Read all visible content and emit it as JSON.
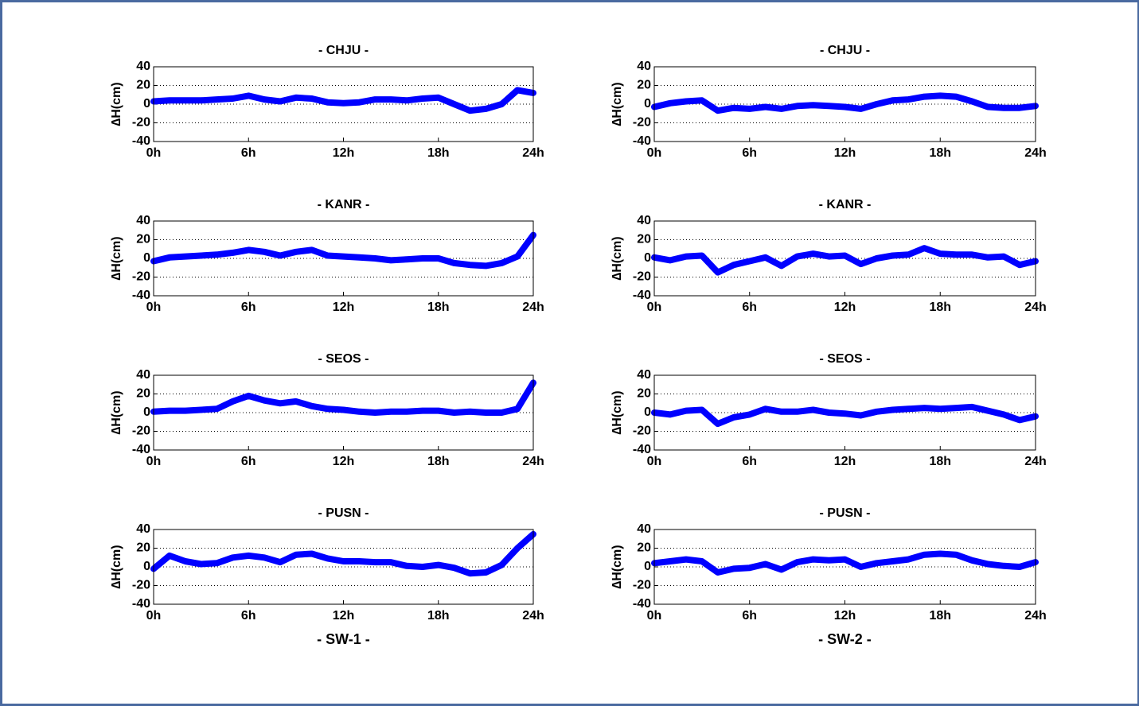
{
  "chart_data": [
    {
      "type": "line",
      "title": "- CHJU -",
      "ylabel": "∆H(cm)",
      "x": [
        0,
        1,
        2,
        3,
        4,
        5,
        6,
        7,
        8,
        9,
        10,
        11,
        12,
        13,
        14,
        15,
        16,
        17,
        18,
        19,
        20,
        21,
        22,
        23,
        24
      ],
      "xlim": [
        0,
        24
      ],
      "xticks": [
        {
          "value": 0,
          "label": "0h"
        },
        {
          "value": 6,
          "label": "6h"
        },
        {
          "value": 12,
          "label": "12h"
        },
        {
          "value": 18,
          "label": "18h"
        },
        {
          "value": 24,
          "label": "24h"
        }
      ],
      "ylim": [
        -40,
        40
      ],
      "yticks": [
        -40,
        -20,
        0,
        20,
        40
      ],
      "grid": true,
      "color": "#0000ff",
      "values": [
        3,
        4,
        4,
        4,
        5,
        6,
        9,
        5,
        3,
        7,
        6,
        2,
        1,
        2,
        5,
        5,
        4,
        6,
        7,
        0,
        -7,
        -5,
        0,
        15,
        12
      ]
    },
    {
      "type": "line",
      "title": "- CHJU -",
      "ylabel": "∆H(cm)",
      "x": [
        0,
        1,
        2,
        3,
        4,
        5,
        6,
        7,
        8,
        9,
        10,
        11,
        12,
        13,
        14,
        15,
        16,
        17,
        18,
        19,
        20,
        21,
        22,
        23,
        24
      ],
      "xlim": [
        0,
        24
      ],
      "xticks": [
        {
          "value": 0,
          "label": "0h"
        },
        {
          "value": 6,
          "label": "6h"
        },
        {
          "value": 12,
          "label": "12h"
        },
        {
          "value": 18,
          "label": "18h"
        },
        {
          "value": 24,
          "label": "24h"
        }
      ],
      "ylim": [
        -40,
        40
      ],
      "yticks": [
        -40,
        -20,
        0,
        20,
        40
      ],
      "grid": true,
      "color": "#0000ff",
      "values": [
        -3,
        1,
        3,
        4,
        -7,
        -4,
        -5,
        -3,
        -5,
        -2,
        -1,
        -2,
        -3,
        -5,
        0,
        4,
        5,
        8,
        9,
        8,
        3,
        -3,
        -4,
        -4,
        -2
      ]
    },
    {
      "type": "line",
      "title": "- KANR -",
      "ylabel": "∆H(cm)",
      "x": [
        0,
        1,
        2,
        3,
        4,
        5,
        6,
        7,
        8,
        9,
        10,
        11,
        12,
        13,
        14,
        15,
        16,
        17,
        18,
        19,
        20,
        21,
        22,
        23,
        24
      ],
      "xlim": [
        0,
        24
      ],
      "xticks": [
        {
          "value": 0,
          "label": "0h"
        },
        {
          "value": 6,
          "label": "6h"
        },
        {
          "value": 12,
          "label": "12h"
        },
        {
          "value": 18,
          "label": "18h"
        },
        {
          "value": 24,
          "label": "24h"
        }
      ],
      "ylim": [
        -40,
        40
      ],
      "yticks": [
        -40,
        -20,
        0,
        20,
        40
      ],
      "grid": true,
      "color": "#0000ff",
      "values": [
        -3,
        1,
        2,
        3,
        4,
        6,
        9,
        7,
        3,
        7,
        9,
        3,
        2,
        1,
        0,
        -2,
        -1,
        0,
        0,
        -5,
        -7,
        -8,
        -5,
        2,
        25
      ]
    },
    {
      "type": "line",
      "title": "- KANR -",
      "ylabel": "∆H(cm)",
      "x": [
        0,
        1,
        2,
        3,
        4,
        5,
        6,
        7,
        8,
        9,
        10,
        11,
        12,
        13,
        14,
        15,
        16,
        17,
        18,
        19,
        20,
        21,
        22,
        23,
        24
      ],
      "xlim": [
        0,
        24
      ],
      "xticks": [
        {
          "value": 0,
          "label": "0h"
        },
        {
          "value": 6,
          "label": "6h"
        },
        {
          "value": 12,
          "label": "12h"
        },
        {
          "value": 18,
          "label": "18h"
        },
        {
          "value": 24,
          "label": "24h"
        }
      ],
      "ylim": [
        -40,
        40
      ],
      "yticks": [
        -40,
        -20,
        0,
        20,
        40
      ],
      "grid": true,
      "color": "#0000ff",
      "values": [
        1,
        -2,
        2,
        3,
        -15,
        -7,
        -3,
        1,
        -8,
        2,
        5,
        2,
        3,
        -6,
        0,
        3,
        4,
        11,
        5,
        4,
        4,
        1,
        2,
        -7,
        -3
      ]
    },
    {
      "type": "line",
      "title": "- SEOS -",
      "ylabel": "∆H(cm)",
      "x": [
        0,
        1,
        2,
        3,
        4,
        5,
        6,
        7,
        8,
        9,
        10,
        11,
        12,
        13,
        14,
        15,
        16,
        17,
        18,
        19,
        20,
        21,
        22,
        23,
        24
      ],
      "xlim": [
        0,
        24
      ],
      "xticks": [
        {
          "value": 0,
          "label": "0h"
        },
        {
          "value": 6,
          "label": "6h"
        },
        {
          "value": 12,
          "label": "12h"
        },
        {
          "value": 18,
          "label": "18h"
        },
        {
          "value": 24,
          "label": "24h"
        }
      ],
      "ylim": [
        -40,
        40
      ],
      "yticks": [
        -40,
        -20,
        0,
        20,
        40
      ],
      "grid": true,
      "color": "#0000ff",
      "values": [
        1,
        2,
        2,
        3,
        4,
        12,
        18,
        13,
        10,
        12,
        7,
        4,
        3,
        1,
        0,
        1,
        1,
        2,
        2,
        0,
        1,
        0,
        0,
        4,
        32
      ]
    },
    {
      "type": "line",
      "title": "- SEOS -",
      "ylabel": "∆H(cm)",
      "x": [
        0,
        1,
        2,
        3,
        4,
        5,
        6,
        7,
        8,
        9,
        10,
        11,
        12,
        13,
        14,
        15,
        16,
        17,
        18,
        19,
        20,
        21,
        22,
        23,
        24
      ],
      "xlim": [
        0,
        24
      ],
      "xticks": [
        {
          "value": 0,
          "label": "0h"
        },
        {
          "value": 6,
          "label": "6h"
        },
        {
          "value": 12,
          "label": "12h"
        },
        {
          "value": 18,
          "label": "18h"
        },
        {
          "value": 24,
          "label": "24h"
        }
      ],
      "ylim": [
        -40,
        40
      ],
      "yticks": [
        -40,
        -20,
        0,
        20,
        40
      ],
      "grid": true,
      "color": "#0000ff",
      "values": [
        0,
        -2,
        2,
        3,
        -12,
        -5,
        -2,
        4,
        1,
        1,
        3,
        0,
        -1,
        -3,
        1,
        3,
        4,
        5,
        4,
        5,
        6,
        2,
        -2,
        -8,
        -4
      ]
    },
    {
      "type": "line",
      "title": "- PUSN -",
      "ylabel": "∆H(cm)",
      "xlabel": "- SW-1 -",
      "x": [
        0,
        1,
        2,
        3,
        4,
        5,
        6,
        7,
        8,
        9,
        10,
        11,
        12,
        13,
        14,
        15,
        16,
        17,
        18,
        19,
        20,
        21,
        22,
        23,
        24
      ],
      "xlim": [
        0,
        24
      ],
      "xticks": [
        {
          "value": 0,
          "label": "0h"
        },
        {
          "value": 6,
          "label": "6h"
        },
        {
          "value": 12,
          "label": "12h"
        },
        {
          "value": 18,
          "label": "18h"
        },
        {
          "value": 24,
          "label": "24h"
        }
      ],
      "ylim": [
        -40,
        40
      ],
      "yticks": [
        -40,
        -20,
        0,
        20,
        40
      ],
      "grid": true,
      "color": "#0000ff",
      "values": [
        -2,
        12,
        6,
        3,
        4,
        10,
        12,
        10,
        5,
        13,
        14,
        9,
        6,
        6,
        5,
        5,
        1,
        0,
        2,
        -1,
        -7,
        -6,
        2,
        20,
        35
      ]
    },
    {
      "type": "line",
      "title": "- PUSN -",
      "ylabel": "∆H(cm)",
      "xlabel": "- SW-2 -",
      "x": [
        0,
        1,
        2,
        3,
        4,
        5,
        6,
        7,
        8,
        9,
        10,
        11,
        12,
        13,
        14,
        15,
        16,
        17,
        18,
        19,
        20,
        21,
        22,
        23,
        24
      ],
      "xlim": [
        0,
        24
      ],
      "xticks": [
        {
          "value": 0,
          "label": "0h"
        },
        {
          "value": 6,
          "label": "6h"
        },
        {
          "value": 12,
          "label": "12h"
        },
        {
          "value": 18,
          "label": "18h"
        },
        {
          "value": 24,
          "label": "24h"
        }
      ],
      "ylim": [
        -40,
        40
      ],
      "yticks": [
        -40,
        -20,
        0,
        20,
        40
      ],
      "grid": true,
      "color": "#0000ff",
      "values": [
        4,
        6,
        8,
        6,
        -6,
        -2,
        -1,
        3,
        -3,
        5,
        8,
        7,
        8,
        0,
        4,
        6,
        8,
        13,
        14,
        13,
        7,
        3,
        1,
        0,
        5
      ]
    }
  ]
}
